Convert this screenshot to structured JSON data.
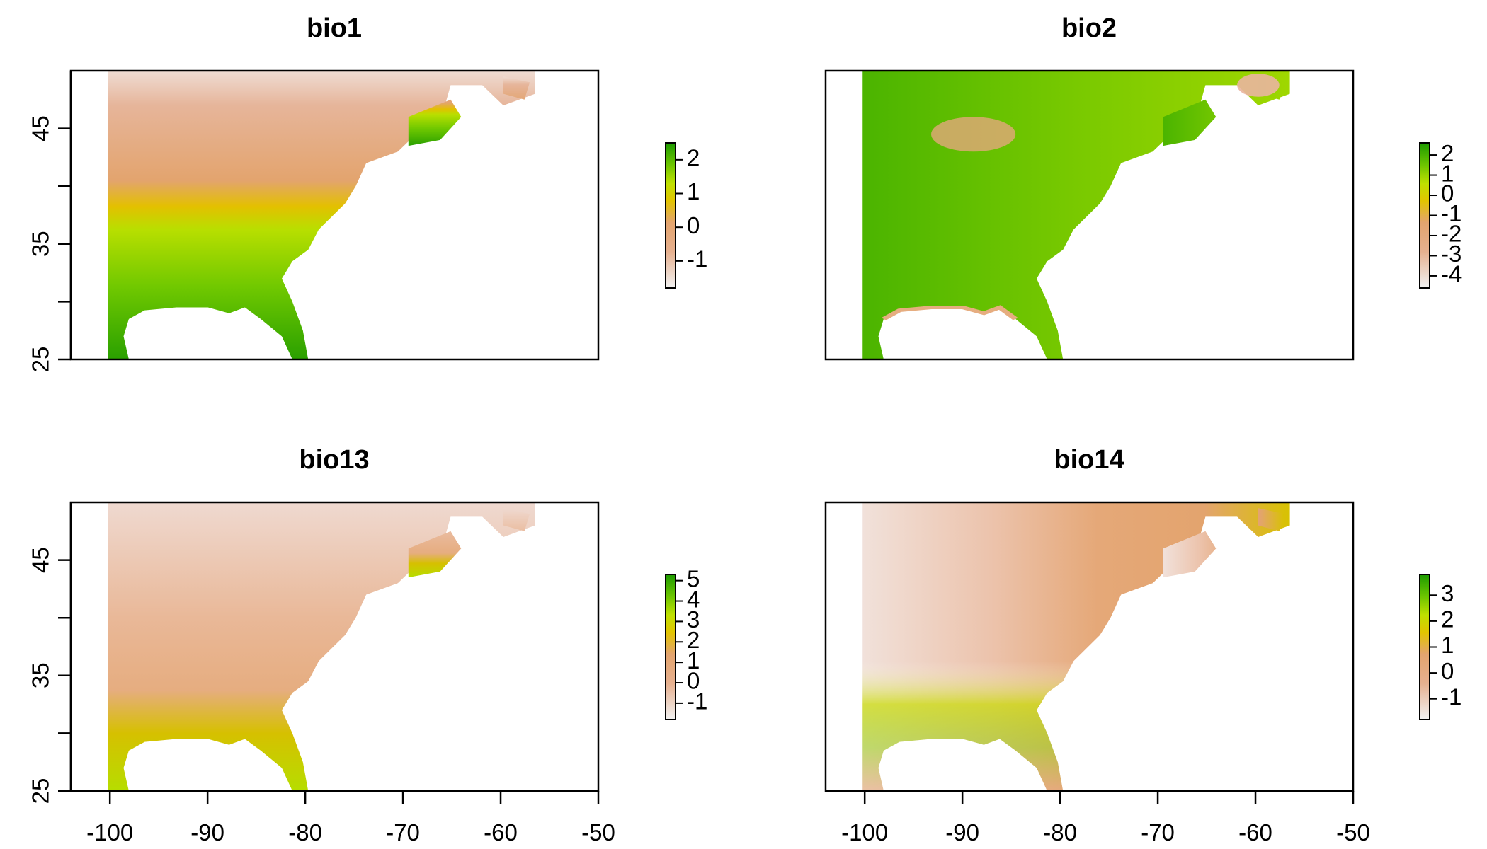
{
  "panels": [
    {
      "title": "bio1",
      "y_ticks": [
        45,
        35,
        25
      ],
      "x_ticks": [],
      "colorbar": {
        "ticks": [
          2,
          1,
          0,
          -1
        ],
        "range": [
          -1.8,
          2.5
        ]
      }
    },
    {
      "title": "bio2",
      "y_ticks": [],
      "x_ticks": [],
      "colorbar": {
        "ticks": [
          2,
          1,
          0,
          -1,
          -2,
          -3,
          -4
        ],
        "range": [
          -4.6,
          2.6
        ]
      }
    },
    {
      "title": "bio13",
      "y_ticks": [
        45,
        35,
        25
      ],
      "x_ticks": [
        -100,
        -90,
        -80,
        -70,
        -60,
        -50
      ],
      "colorbar": {
        "ticks": [
          5,
          4,
          3,
          2,
          1,
          0,
          -1
        ],
        "range": [
          -1.8,
          5.3
        ]
      }
    },
    {
      "title": "bio14",
      "y_ticks": [],
      "x_ticks": [
        -100,
        -90,
        -80,
        -70,
        -60,
        -50
      ],
      "colorbar": {
        "ticks": [
          3,
          2,
          1,
          0,
          -1
        ],
        "range": [
          -1.8,
          3.8
        ]
      }
    }
  ],
  "extent": {
    "lon": [
      -104,
      -50
    ],
    "lat": [
      25,
      50
    ]
  },
  "colors": {
    "ramp": [
      "#f2f2f2",
      "#eab090",
      "#e3a46e",
      "#e5c000",
      "#c6e100",
      "#8fd100",
      "#4db300",
      "#1d9a00"
    ]
  }
}
